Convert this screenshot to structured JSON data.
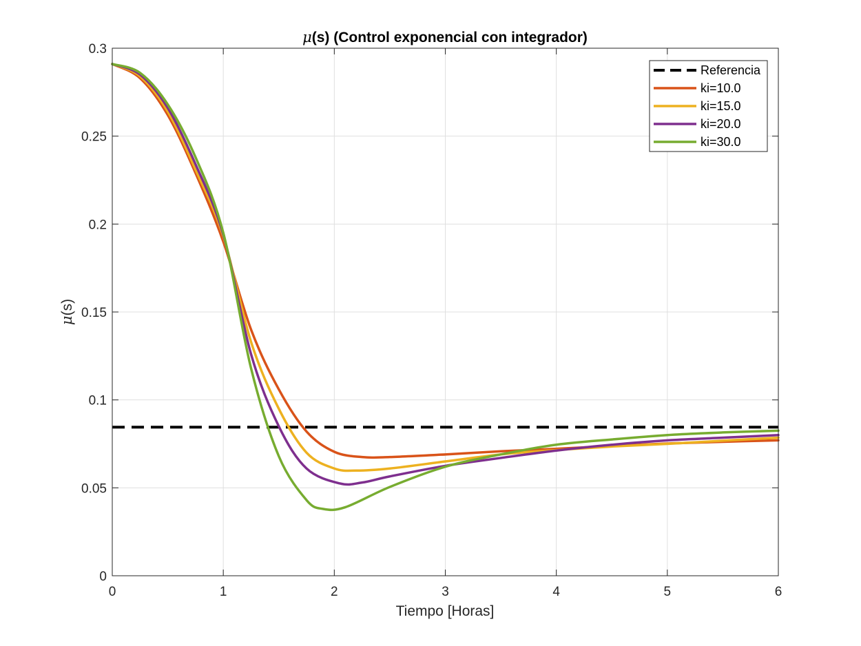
{
  "chart_data": {
    "type": "line",
    "title_symbol": "μ",
    "title": "(s)  (Control exponencial con integrador)",
    "xlabel": "Tiempo [Horas]",
    "ylabel_symbol": "μ",
    "ylabel": "(s)",
    "xlim": [
      0,
      6
    ],
    "ylim": [
      0,
      0.3
    ],
    "x_ticks": [
      "0",
      "1",
      "2",
      "3",
      "4",
      "5",
      "6"
    ],
    "y_ticks": [
      "0",
      "0.05",
      "0.1",
      "0.15",
      "0.2",
      "0.25",
      "0.3"
    ],
    "grid": true,
    "legend_position": "top-right",
    "reference": {
      "name": "Referencia",
      "value": 0.0845,
      "color": "#000000",
      "dash": true
    },
    "series": [
      {
        "name": "ki=10.0",
        "color": "#D95319",
        "x": [
          0,
          0.25,
          0.5,
          0.75,
          1.0,
          1.25,
          1.5,
          1.75,
          2.0,
          2.25,
          2.5,
          3.0,
          3.5,
          4.0,
          4.5,
          5.0,
          5.5,
          6.0
        ],
        "y": [
          0.291,
          0.283,
          0.262,
          0.229,
          0.19,
          0.14,
          0.106,
          0.082,
          0.0705,
          0.0675,
          0.0675,
          0.069,
          0.0708,
          0.0722,
          0.0738,
          0.0752,
          0.0762,
          0.077
        ]
      },
      {
        "name": "ki=15.0",
        "color": "#EDB120",
        "x": [
          0,
          0.25,
          0.5,
          0.75,
          1.0,
          1.25,
          1.5,
          1.75,
          2.0,
          2.2,
          2.5,
          3.0,
          3.5,
          4.0,
          4.5,
          5.0,
          5.5,
          6.0
        ],
        "y": [
          0.291,
          0.284,
          0.264,
          0.231,
          0.193,
          0.133,
          0.095,
          0.07,
          0.061,
          0.0598,
          0.061,
          0.065,
          0.069,
          0.0715,
          0.0735,
          0.075,
          0.0768,
          0.0785
        ]
      },
      {
        "name": "ki=20.0",
        "color": "#7E2F8E",
        "x": [
          0,
          0.25,
          0.5,
          0.75,
          1.0,
          1.25,
          1.5,
          1.75,
          2.05,
          2.25,
          2.5,
          3.0,
          3.5,
          4.0,
          4.5,
          5.0,
          5.5,
          6.0
        ],
        "y": [
          0.291,
          0.285,
          0.266,
          0.234,
          0.194,
          0.126,
          0.085,
          0.061,
          0.0525,
          0.053,
          0.0565,
          0.0625,
          0.067,
          0.0712,
          0.0745,
          0.077,
          0.0785,
          0.08
        ]
      },
      {
        "name": "ki=30.0",
        "color": "#77AC30",
        "x": [
          0,
          0.25,
          0.5,
          0.75,
          1.0,
          1.25,
          1.5,
          1.75,
          1.9,
          2.1,
          2.5,
          3.0,
          3.5,
          4.0,
          4.5,
          5.0,
          5.5,
          6.0
        ],
        "y": [
          0.291,
          0.286,
          0.268,
          0.238,
          0.195,
          0.118,
          0.068,
          0.043,
          0.038,
          0.039,
          0.0505,
          0.062,
          0.069,
          0.0745,
          0.0775,
          0.08,
          0.0815,
          0.0825
        ]
      }
    ]
  }
}
